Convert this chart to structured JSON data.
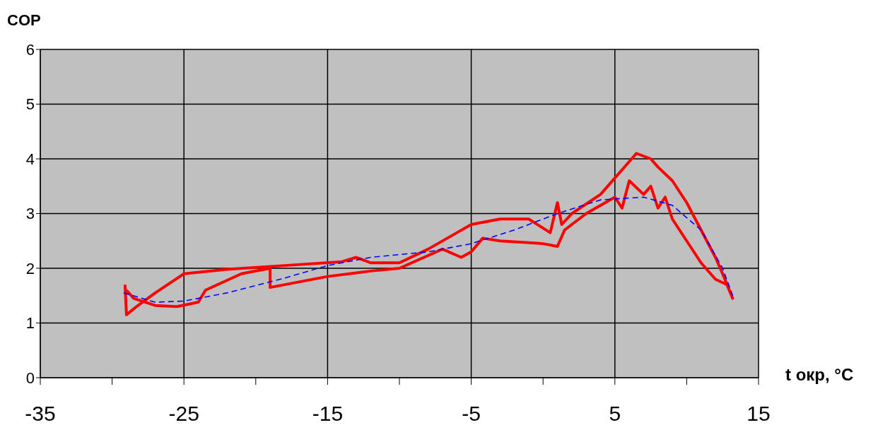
{
  "chart_data": {
    "type": "line",
    "xlabel": "t окр, °C",
    "ylabel": "COP",
    "xlim": [
      -35,
      15
    ],
    "ylim": [
      0,
      6
    ],
    "xticks": [
      -35,
      {
        "value": -30,
        "label": null
      },
      -25,
      {
        "value": -20,
        "label": null
      },
      -15,
      {
        "value": -10,
        "label": null
      },
      -5,
      {
        "value": 0,
        "label": null
      },
      5,
      {
        "value": 10,
        "label": null
      },
      15
    ],
    "yticks": [
      0,
      1,
      2,
      3,
      4,
      5,
      6
    ],
    "grid": true,
    "marker": "none",
    "series": [
      {
        "color": "#ff0000",
        "line_style": "solid",
        "x": [
          -29.1,
          -29,
          -28.3,
          -27,
          -25,
          -22,
          -18,
          -14,
          -13,
          -12,
          -10,
          -8,
          -6,
          -5,
          -3,
          -1,
          0.5,
          1,
          1.3,
          2,
          4,
          5.5,
          6.5,
          7.5,
          8,
          9,
          10,
          11,
          12,
          12.5,
          13.2,
          12.8,
          12,
          11,
          10,
          9,
          8.5,
          8,
          7.5,
          7,
          6,
          5.5,
          5,
          3,
          1.5,
          1,
          0,
          -3,
          -4.2,
          -5,
          -5.7,
          -7,
          -10,
          -12,
          -15,
          -19,
          -19,
          -21,
          -23.5,
          -24,
          -25.5,
          -27,
          -28.5,
          -29
        ],
        "values": [
          1.7,
          1.15,
          1.3,
          1.55,
          1.9,
          1.98,
          2.05,
          2.12,
          2.2,
          2.1,
          2.1,
          2.35,
          2.65,
          2.8,
          2.9,
          2.9,
          2.65,
          3.2,
          2.8,
          3.0,
          3.35,
          3.8,
          4.1,
          4.0,
          3.85,
          3.6,
          3.2,
          2.7,
          2.2,
          1.9,
          1.45,
          1.7,
          1.8,
          2.1,
          2.5,
          2.9,
          3.3,
          3.1,
          3.5,
          3.35,
          3.6,
          3.1,
          3.3,
          3.0,
          2.7,
          2.4,
          2.45,
          2.5,
          2.55,
          2.3,
          2.2,
          2.35,
          2.0,
          1.95,
          1.85,
          1.65,
          2.0,
          1.9,
          1.6,
          1.38,
          1.3,
          1.32,
          1.45,
          1.6
        ]
      },
      {
        "color": "#0000ff",
        "line_style": "dashed",
        "x": [
          -29.2,
          -27,
          -25,
          -22,
          -18,
          -15,
          -12,
          -8,
          -5,
          -2,
          1,
          4,
          7,
          9,
          11,
          12.5,
          13.2
        ],
        "values": [
          1.55,
          1.38,
          1.4,
          1.55,
          1.82,
          2.05,
          2.2,
          2.3,
          2.45,
          2.7,
          3.0,
          3.25,
          3.3,
          3.15,
          2.7,
          2.0,
          1.5
        ]
      }
    ]
  }
}
